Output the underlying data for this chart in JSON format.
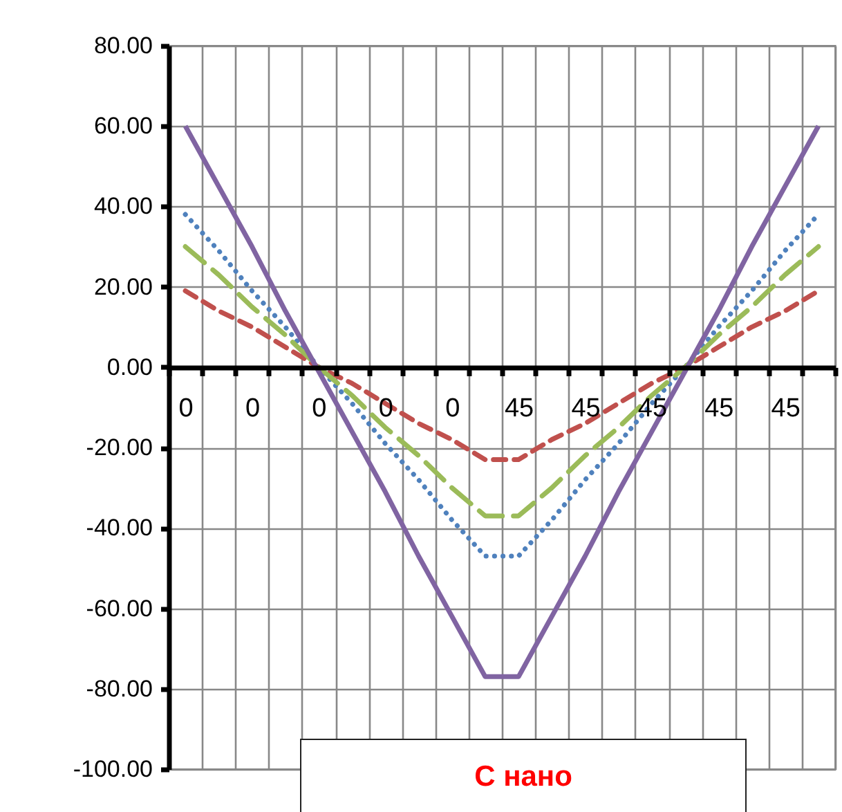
{
  "chart_data": {
    "type": "line",
    "title": "С нано",
    "categories": [
      "0",
      null,
      "0",
      null,
      "0",
      null,
      "0",
      null,
      "0",
      null,
      "45",
      null,
      "45",
      null,
      "45",
      null,
      "45",
      null,
      "45",
      null
    ],
    "series": [
      {
        "color": "#4f81bd",
        "line_style": "dotted",
        "values": [
          38,
          29,
          19,
          10,
          0,
          -9,
          -19,
          -28,
          -38,
          -47,
          -47,
          -38,
          -28,
          -19,
          -9,
          0,
          10,
          19,
          29,
          38
        ]
      },
      {
        "color": "#c0504d",
        "line_style": "dashed",
        "values": [
          19,
          14,
          10,
          5,
          0,
          -4,
          -9,
          -14,
          -18,
          -23,
          -23,
          -18,
          -14,
          -9,
          -4,
          0,
          5,
          10,
          14,
          19
        ]
      },
      {
        "color": "#9bbb59",
        "line_style": "longdash",
        "values": [
          30,
          23,
          15,
          8,
          0,
          -7,
          -15,
          -22,
          -30,
          -37,
          -37,
          -30,
          -22,
          -15,
          -7,
          0,
          8,
          15,
          23,
          30
        ]
      },
      {
        "color": "#8064a2",
        "line_style": "solid",
        "values": [
          60,
          45,
          30,
          14,
          -1,
          -16,
          -31,
          -47,
          -62,
          -77,
          -77,
          -62,
          -47,
          -31,
          -16,
          -1,
          14,
          30,
          45,
          60
        ]
      }
    ],
    "ylim": [
      -100,
      80
    ],
    "yticks": [
      {
        "value": 80,
        "label": "80.00"
      },
      {
        "value": 60,
        "label": "60.00"
      },
      {
        "value": 40,
        "label": "40.00"
      },
      {
        "value": 20,
        "label": "20.00"
      },
      {
        "value": 0,
        "label": "0.00"
      },
      {
        "value": -20,
        "label": "-20.00"
      },
      {
        "value": -40,
        "label": "-40.00"
      },
      {
        "value": -60,
        "label": "-60.00"
      },
      {
        "value": -80,
        "label": "-80.00"
      },
      {
        "value": -100,
        "label": "-100.00"
      }
    ],
    "grid": true
  }
}
